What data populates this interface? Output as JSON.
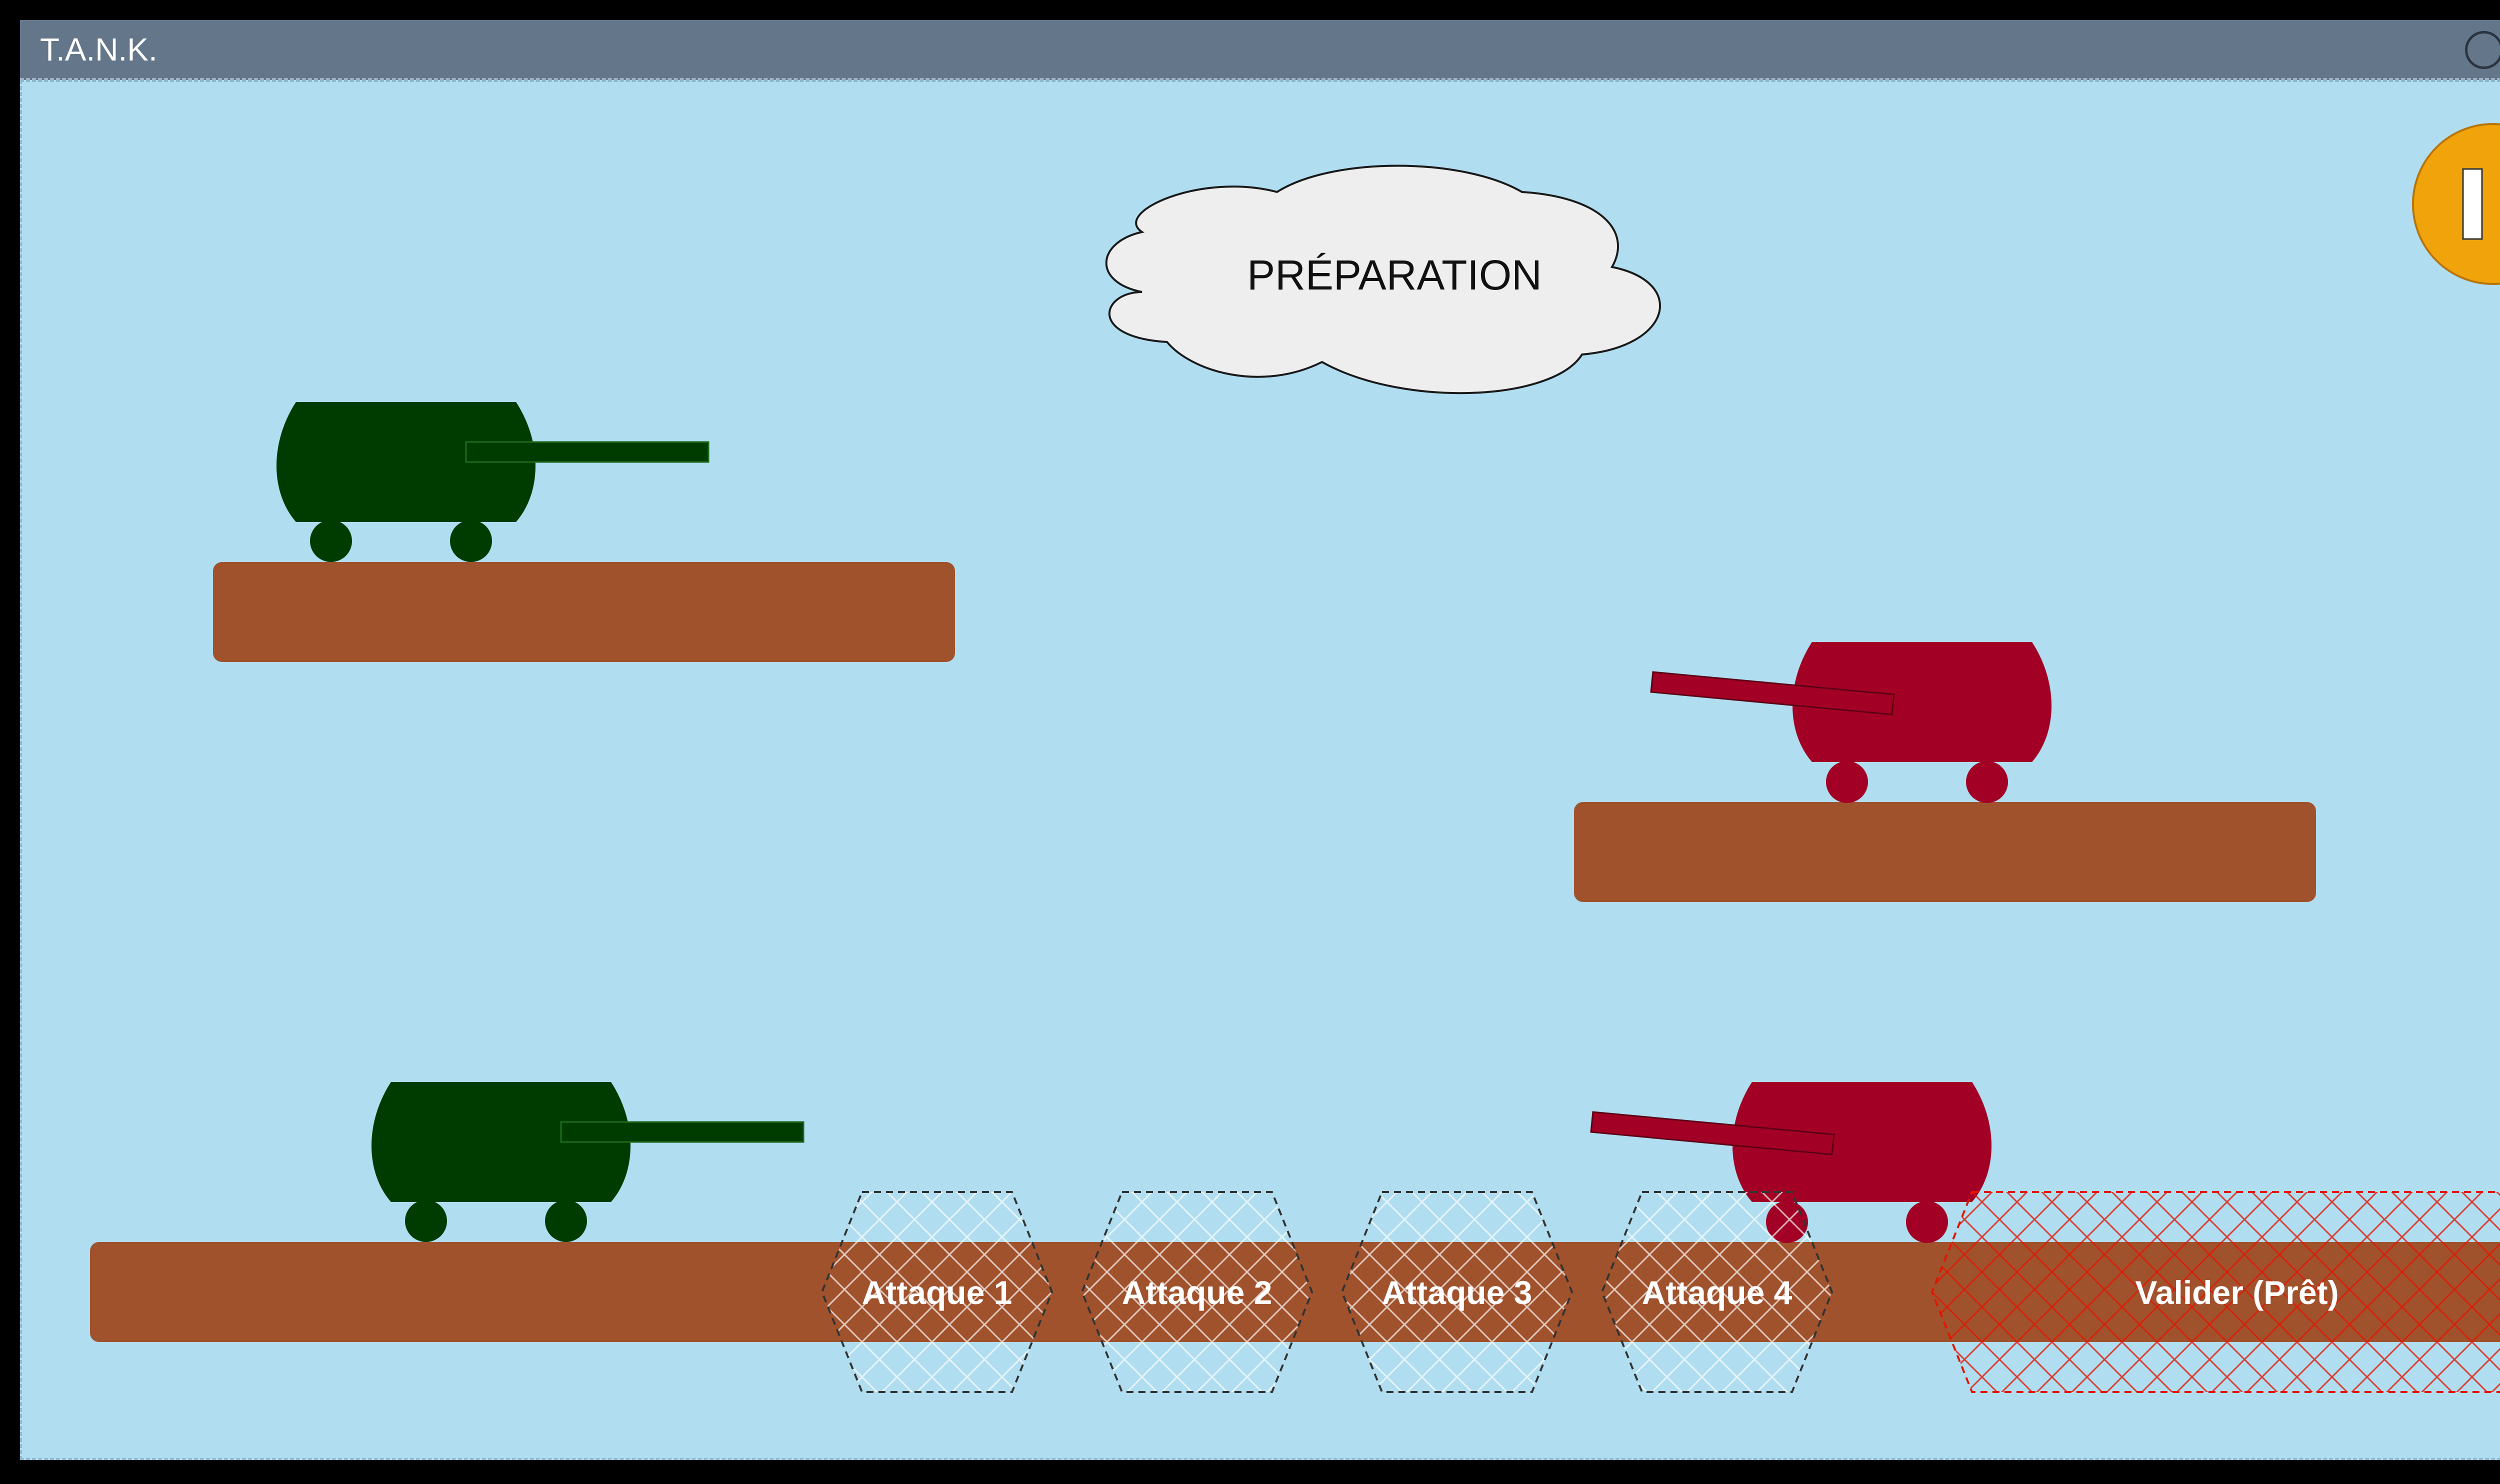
{
  "window": {
    "title": "T.A.N.K.",
    "buttons": [
      {
        "name": "window-minimize-button",
        "icon": "circle-icon"
      },
      {
        "name": "window-maximize-button",
        "icon": "circle-icon"
      },
      {
        "name": "window-close-button",
        "icon": "circle-icon"
      }
    ]
  },
  "game": {
    "phase_label": "PRÉPARATION",
    "pause": {
      "icon": "pause-icon",
      "color": "#f0a30a"
    },
    "colors": {
      "sky": "#b0ddf0",
      "platform": "#a0522d",
      "green_tank": "#003b00",
      "red_tank": "#a20025",
      "cloud": "#eeeeee",
      "attack_tiles": "#ffffff",
      "validate_tile": "#e51400"
    },
    "actions": [
      {
        "id": "attack-1",
        "label": "Attaque 1"
      },
      {
        "id": "attack-2",
        "label": "Attaque 2"
      },
      {
        "id": "attack-3",
        "label": "Attaque 3"
      },
      {
        "id": "attack-4",
        "label": "Attaque 4"
      },
      {
        "id": "validate",
        "label": "Valider (Prêt)"
      }
    ],
    "tanks": [
      {
        "team": "green",
        "facing": "right"
      },
      {
        "team": "green",
        "facing": "right"
      },
      {
        "team": "red",
        "facing": "left"
      },
      {
        "team": "red",
        "facing": "left"
      }
    ]
  }
}
